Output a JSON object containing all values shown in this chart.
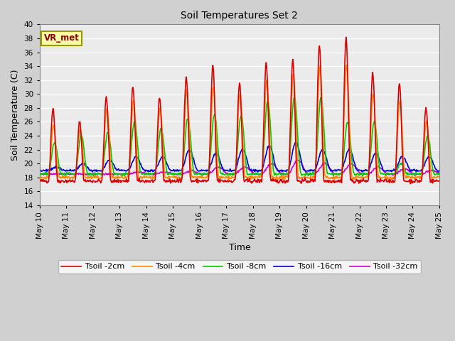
{
  "title": "Soil Temperatures Set 2",
  "xlabel": "Time",
  "ylabel": "Soil Temperature (C)",
  "ylim": [
    14,
    40
  ],
  "yticks": [
    14,
    16,
    18,
    20,
    22,
    24,
    26,
    28,
    30,
    32,
    34,
    36,
    38,
    40
  ],
  "annotation": "VR_met",
  "fig_bg_color": "#d0d0d0",
  "plot_bg_color": "#ebebeb",
  "grid_color": "#ffffff",
  "series_colors": {
    "Tsoil -2cm": "#dd0000",
    "Tsoil -4cm": "#ff8800",
    "Tsoil -8cm": "#00cc00",
    "Tsoil -16cm": "#0000dd",
    "Tsoil -32cm": "#cc00cc"
  },
  "lw": 1.2,
  "xtick_labels": [
    "May 10",
    "May 11",
    "May 12",
    "May 13",
    "May 14",
    "May 15",
    "May 16",
    "May 17",
    "May 18",
    "May 19",
    "May 20",
    "May 21",
    "May 22",
    "May 23",
    "May 24",
    "May 25"
  ],
  "xtick_positions": [
    0,
    1,
    2,
    3,
    4,
    5,
    6,
    7,
    8,
    9,
    10,
    11,
    12,
    13,
    14,
    15
  ]
}
